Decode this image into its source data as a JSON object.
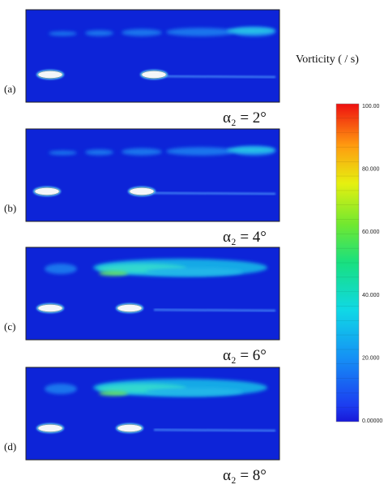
{
  "legend": {
    "title": "Vorticity ( / s)",
    "ticks": [
      "100.00",
      "80.000",
      "60.000",
      "40.000",
      "20.000",
      "0.00000"
    ]
  },
  "panels": [
    {
      "label": "(a)",
      "caption": "α₂ = 2°"
    },
    {
      "label": "(b)",
      "caption": "α₂ = 4°"
    },
    {
      "label": "(c)",
      "caption": "α₂ = 6°"
    },
    {
      "label": "(d)",
      "caption": "α₂ = 8°"
    }
  ]
}
